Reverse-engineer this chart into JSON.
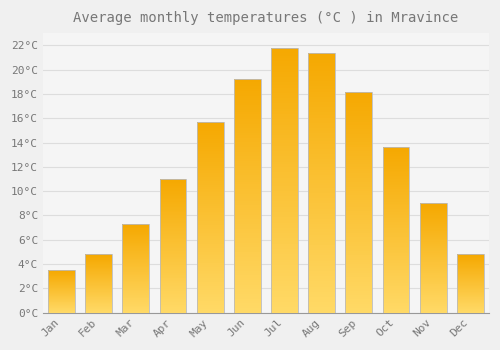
{
  "title": "Average monthly temperatures (°C ) in Mravince",
  "months": [
    "Jan",
    "Feb",
    "Mar",
    "Apr",
    "May",
    "Jun",
    "Jul",
    "Aug",
    "Sep",
    "Oct",
    "Nov",
    "Dec"
  ],
  "values": [
    3.5,
    4.8,
    7.3,
    11.0,
    15.7,
    19.2,
    21.8,
    21.4,
    18.2,
    13.6,
    9.0,
    4.8
  ],
  "bar_color_dark": "#F5A800",
  "bar_color_light": "#FFD966",
  "bar_border_color": "#BBBBBB",
  "background_color": "#F0F0F0",
  "plot_bg_color": "#F5F5F5",
  "grid_color": "#DDDDDD",
  "text_color": "#777777",
  "ylim": [
    0,
    23
  ],
  "ytick_step": 2,
  "title_fontsize": 10,
  "tick_fontsize": 8
}
